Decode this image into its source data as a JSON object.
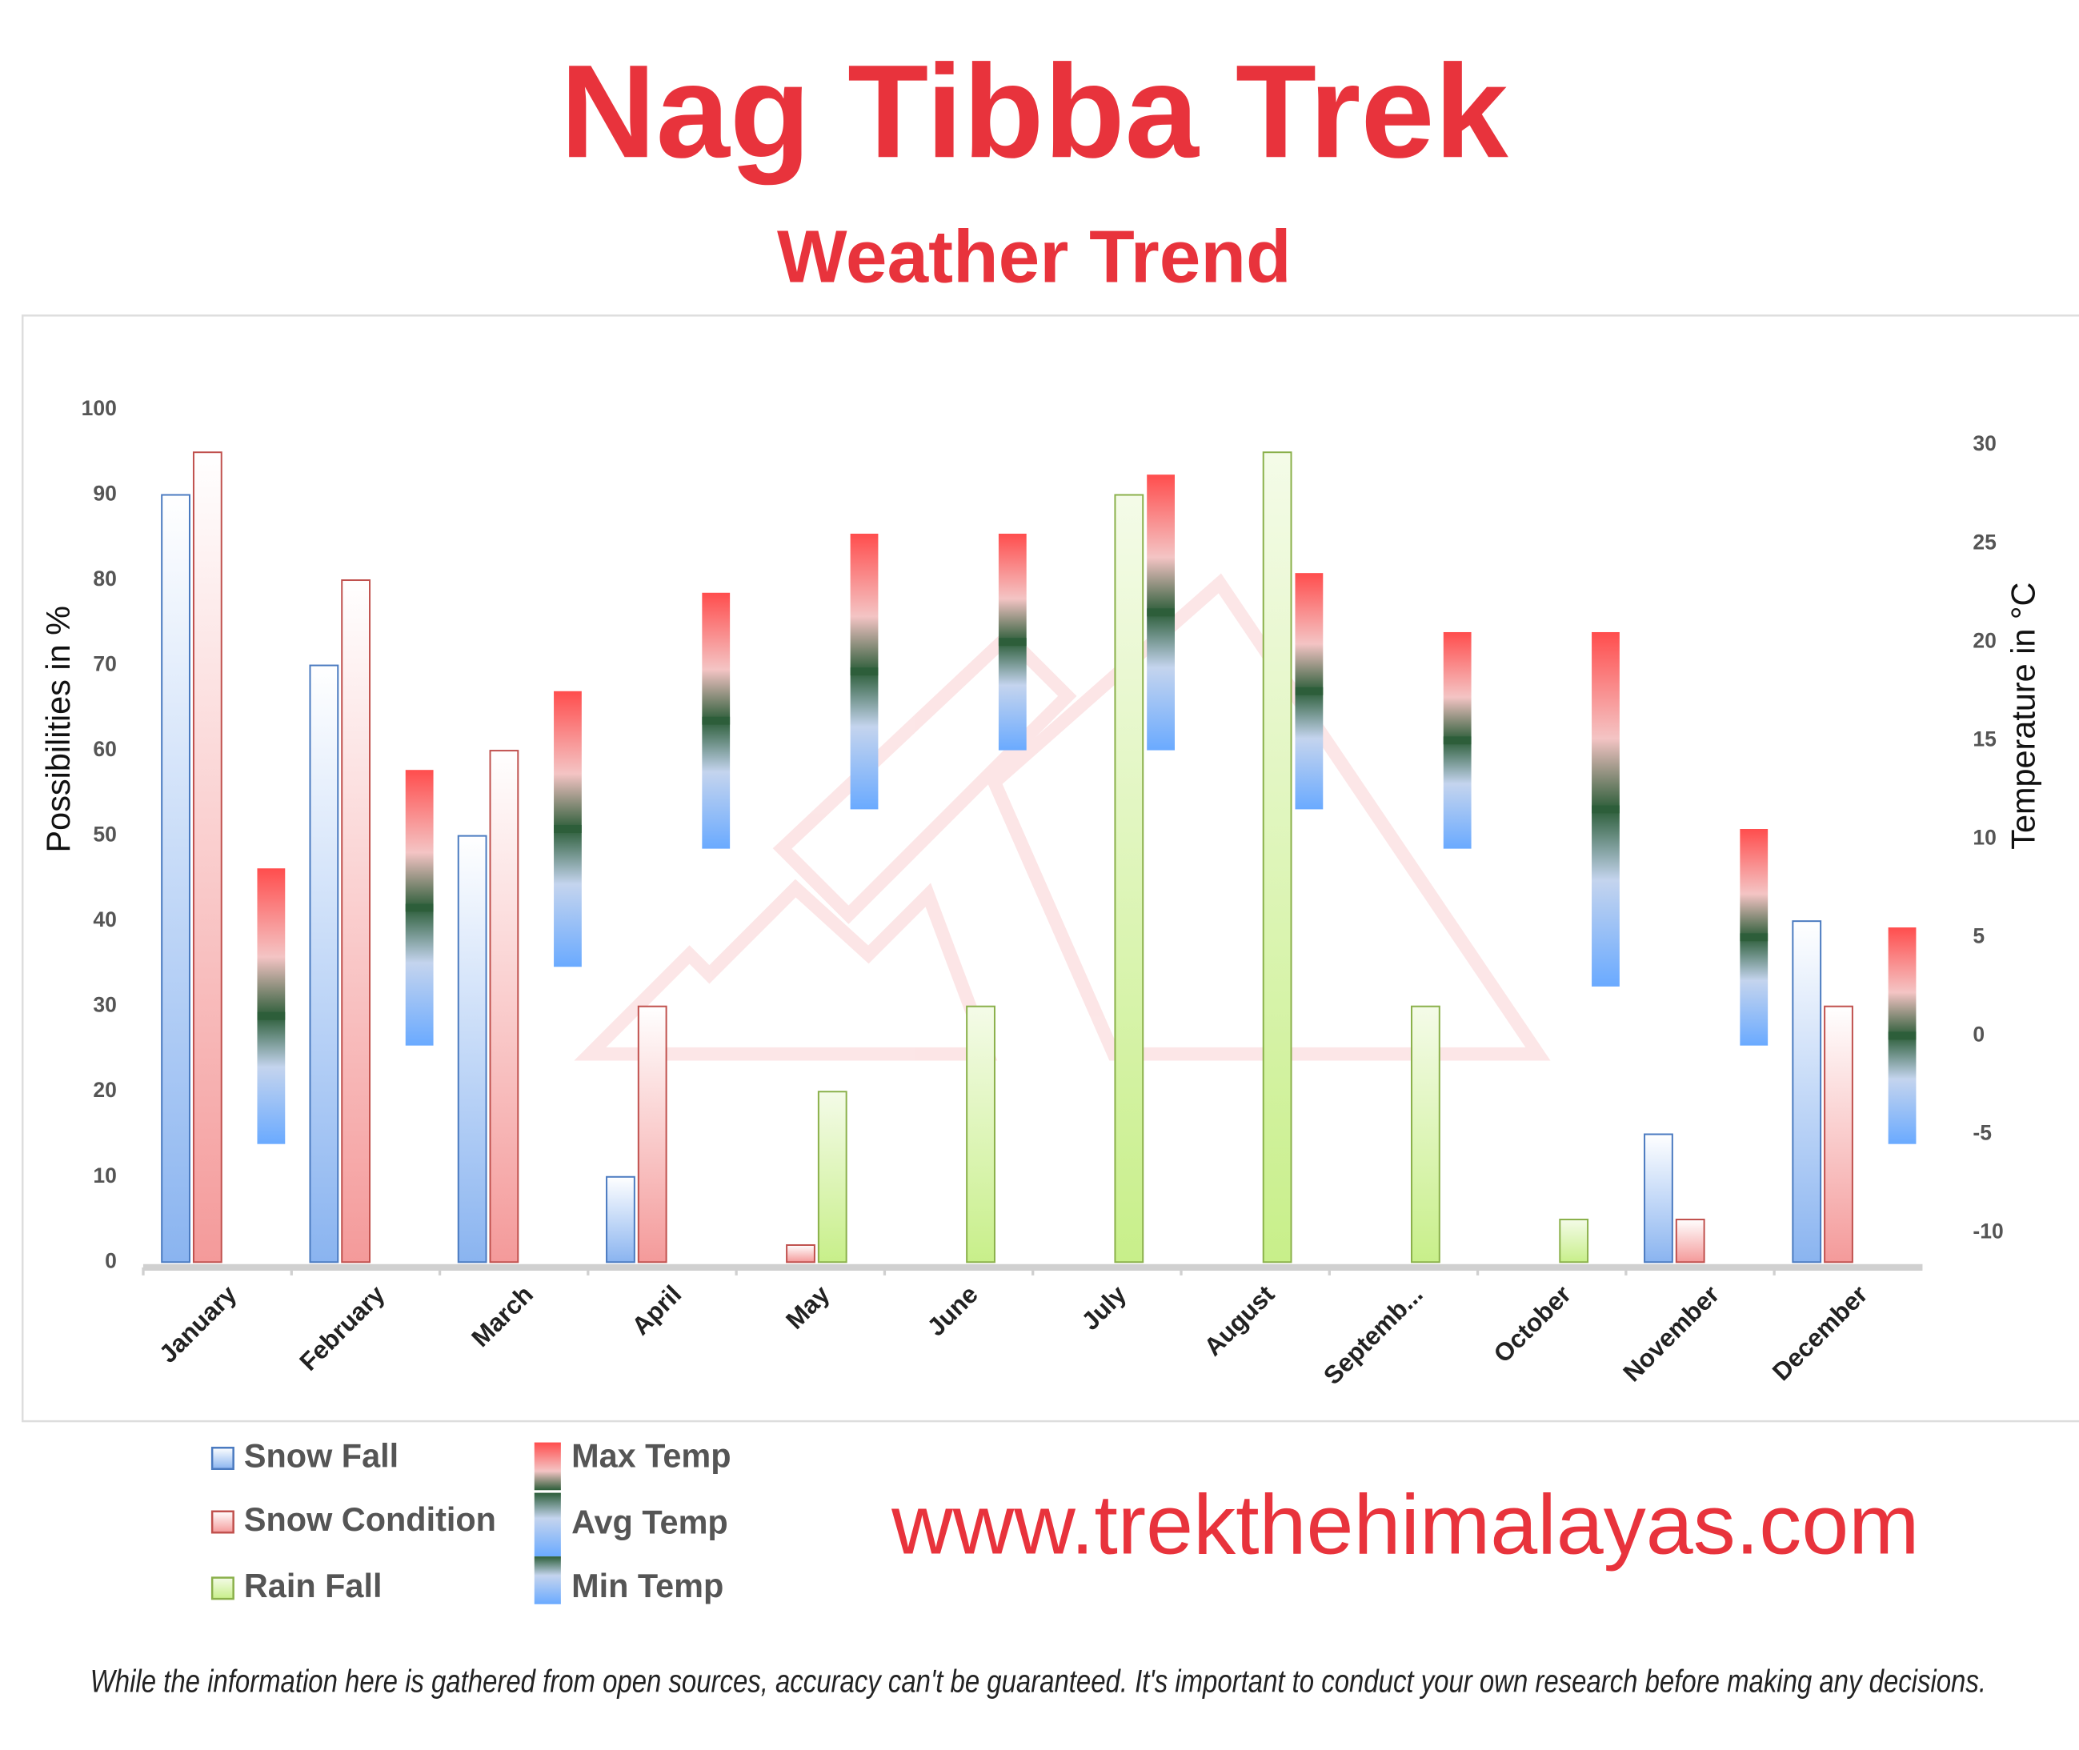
{
  "chart_data": {
    "type": "bar",
    "title": "Nag Tibba Trek",
    "subtitle": "Weather Trend",
    "y_label": "Possibilities in %",
    "y2_label": "Temperature in °C",
    "categories": [
      "January",
      "February",
      "March",
      "April",
      "May",
      "June",
      "July",
      "August",
      "Septemb...",
      "October",
      "November",
      "December"
    ],
    "series": [
      {
        "name": "Snow Fall",
        "color": "#8ab4f0",
        "values": [
          90,
          70,
          50,
          10,
          0,
          0,
          0,
          0,
          0,
          0,
          15,
          40
        ]
      },
      {
        "name": "Snow Condition",
        "color": "#f49a9a",
        "values": [
          95,
          80,
          60,
          30,
          2,
          0,
          0,
          0,
          0,
          0,
          5,
          30
        ]
      },
      {
        "name": "Rain Fall",
        "color": "#c8ef8a",
        "values": [
          0,
          0,
          0,
          0,
          20,
          30,
          90,
          95,
          30,
          5,
          0,
          0
        ]
      },
      {
        "name": "Max Temp",
        "color": "#ff4d4d",
        "axis": "y2",
        "values": [
          8.5,
          13.5,
          17.5,
          22.5,
          25.5,
          25.5,
          28.5,
          23.5,
          20.5,
          20.5,
          10.5,
          5.5
        ]
      },
      {
        "name": "Avg Temp",
        "color": "#2d5e3a",
        "axis": "y2",
        "values": [
          1,
          6.5,
          10.5,
          16,
          18.5,
          20,
          21.5,
          17.5,
          15,
          11.5,
          5,
          0
        ]
      },
      {
        "name": "Min Temp",
        "color": "#6aaaff",
        "axis": "y2",
        "values": [
          -5.5,
          -0.5,
          3.5,
          9.5,
          11.5,
          14.5,
          14.5,
          11.5,
          9.5,
          2.5,
          -0.5,
          -5.5
        ]
      }
    ],
    "ylim": [
      0,
      100
    ],
    "yticks": [
      0,
      10,
      20,
      30,
      40,
      50,
      60,
      70,
      80,
      90,
      100
    ],
    "y2lim": [
      -11.5,
      31.8
    ],
    "y2ticks": [
      -10,
      -5,
      0,
      5,
      10,
      15,
      20,
      25,
      30
    ]
  },
  "website": "www.trekthehimalayas.com",
  "disclaimer": "While the information here is gathered from open sources, accuracy can't be guaranteed. It's important to conduct your own research before making any decisions."
}
